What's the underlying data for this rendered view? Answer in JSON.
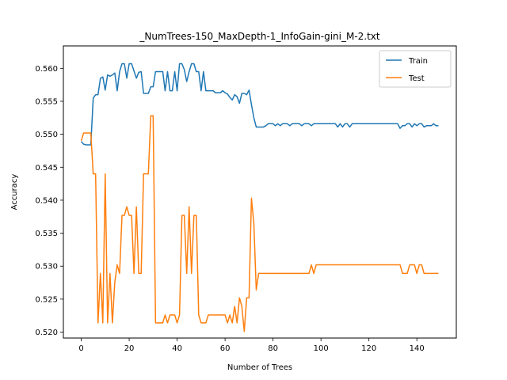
{
  "chart_data": {
    "type": "line",
    "title": "_NumTrees-150_MaxDepth-1_InfoGain-gini_M-2.txt",
    "xlabel": "Number of Trees",
    "ylabel": "Accuracy",
    "xlim": [
      -7.45,
      156.45
    ],
    "ylim": [
      0.5191,
      0.5634
    ],
    "xticks": [
      0,
      20,
      40,
      60,
      80,
      100,
      120,
      140
    ],
    "yticks": [
      0.52,
      0.525,
      0.53,
      0.535,
      0.54,
      0.545,
      0.55,
      0.555,
      0.56
    ],
    "ytick_labels": [
      "0.520",
      "0.525",
      "0.530",
      "0.535",
      "0.540",
      "0.545",
      "0.550",
      "0.555",
      "0.560"
    ],
    "grid": false,
    "legend_position": "top-right",
    "series": [
      {
        "name": "Train",
        "color": "#1f77b4",
        "x": [
          0,
          1,
          2,
          3,
          4,
          5,
          6,
          7,
          8,
          9,
          10,
          11,
          12,
          13,
          14,
          15,
          16,
          17,
          18,
          19,
          20,
          21,
          22,
          23,
          24,
          25,
          26,
          27,
          28,
          29,
          30,
          31,
          32,
          33,
          34,
          35,
          36,
          37,
          38,
          39,
          40,
          41,
          42,
          43,
          44,
          45,
          46,
          47,
          48,
          49,
          50,
          51,
          52,
          53,
          54,
          55,
          56,
          57,
          58,
          59,
          60,
          61,
          62,
          63,
          64,
          65,
          66,
          67,
          68,
          69,
          70,
          71,
          72,
          73,
          74,
          75,
          76,
          77,
          78,
          79,
          80,
          81,
          82,
          83,
          84,
          85,
          86,
          87,
          88,
          89,
          90,
          91,
          92,
          93,
          94,
          95,
          96,
          97,
          98,
          99,
          100,
          101,
          102,
          103,
          104,
          105,
          106,
          107,
          108,
          109,
          110,
          111,
          112,
          113,
          114,
          115,
          116,
          117,
          118,
          119,
          120,
          121,
          122,
          123,
          124,
          125,
          126,
          127,
          128,
          129,
          130,
          131,
          132,
          133,
          134,
          135,
          136,
          137,
          138,
          139,
          140,
          141,
          142,
          143,
          144,
          145,
          146,
          147,
          148,
          149
        ],
        "y": [
          0.5489,
          0.5485,
          0.5484,
          0.5484,
          0.5484,
          0.5555,
          0.556,
          0.556,
          0.5585,
          0.5587,
          0.5567,
          0.559,
          0.5588,
          0.559,
          0.5593,
          0.5566,
          0.5595,
          0.5607,
          0.5607,
          0.5585,
          0.5607,
          0.5607,
          0.5596,
          0.5585,
          0.5594,
          0.5595,
          0.5562,
          0.5562,
          0.5562,
          0.5572,
          0.5572,
          0.5595,
          0.5595,
          0.5595,
          0.5595,
          0.5566,
          0.5595,
          0.5566,
          0.5566,
          0.5595,
          0.5566,
          0.5607,
          0.5607,
          0.5598,
          0.558,
          0.5595,
          0.5607,
          0.5607,
          0.5595,
          0.5595,
          0.5566,
          0.5595,
          0.5566,
          0.5566,
          0.5566,
          0.5566,
          0.5563,
          0.5563,
          0.5563,
          0.5566,
          0.5563,
          0.5561,
          0.5556,
          0.5552,
          0.556,
          0.5557,
          0.5547,
          0.5562,
          0.5562,
          0.556,
          0.5567,
          0.5545,
          0.5525,
          0.5511,
          0.5511,
          0.5511,
          0.5511,
          0.5513,
          0.5516,
          0.5516,
          0.5516,
          0.5513,
          0.5516,
          0.5513,
          0.5516,
          0.5516,
          0.5516,
          0.5513,
          0.5516,
          0.5516,
          0.5516,
          0.5516,
          0.5513,
          0.5516,
          0.5516,
          0.5516,
          0.5513,
          0.5516,
          0.5516,
          0.5516,
          0.5516,
          0.5516,
          0.5516,
          0.5516,
          0.5516,
          0.5516,
          0.5516,
          0.5511,
          0.5516,
          0.5511,
          0.5516,
          0.5516,
          0.5511,
          0.5516,
          0.5516,
          0.5516,
          0.5516,
          0.5516,
          0.5516,
          0.5516,
          0.5516,
          0.5516,
          0.5516,
          0.5516,
          0.5516,
          0.5516,
          0.5516,
          0.5516,
          0.5516,
          0.5516,
          0.5516,
          0.5516,
          0.5516,
          0.5509,
          0.5513,
          0.5513,
          0.5516,
          0.5516,
          0.5511,
          0.5516,
          0.5513,
          0.5516,
          0.5516,
          0.5511,
          0.5513,
          0.5513,
          0.5513,
          0.5516,
          0.5513,
          0.5513
        ]
      },
      {
        "name": "Test",
        "color": "#ff7f0e",
        "x": [
          0,
          1,
          2,
          3,
          4,
          5,
          6,
          7,
          8,
          9,
          10,
          11,
          12,
          13,
          14,
          15,
          16,
          17,
          18,
          19,
          20,
          21,
          22,
          23,
          24,
          25,
          26,
          27,
          28,
          29,
          30,
          31,
          32,
          33,
          34,
          35,
          36,
          37,
          38,
          39,
          40,
          41,
          42,
          43,
          44,
          45,
          46,
          47,
          48,
          49,
          50,
          51,
          52,
          53,
          54,
          55,
          56,
          57,
          58,
          59,
          60,
          61,
          62,
          63,
          64,
          65,
          66,
          67,
          68,
          69,
          70,
          71,
          72,
          73,
          74,
          75,
          76,
          77,
          78,
          79,
          80,
          81,
          82,
          83,
          84,
          85,
          86,
          87,
          88,
          89,
          90,
          91,
          92,
          93,
          94,
          95,
          96,
          97,
          98,
          99,
          100,
          101,
          102,
          103,
          104,
          105,
          106,
          107,
          108,
          109,
          110,
          111,
          112,
          113,
          114,
          115,
          116,
          117,
          118,
          119,
          120,
          121,
          122,
          123,
          124,
          125,
          126,
          127,
          128,
          129,
          130,
          131,
          132,
          133,
          134,
          135,
          136,
          137,
          138,
          139,
          140,
          141,
          142,
          143,
          144,
          145,
          146,
          147,
          148,
          149
        ],
        "y": [
          0.549,
          0.5502,
          0.5502,
          0.5502,
          0.5502,
          0.544,
          0.544,
          0.5214,
          0.5289,
          0.5214,
          0.544,
          0.5214,
          0.5289,
          0.5214,
          0.5276,
          0.5302,
          0.5289,
          0.5377,
          0.5377,
          0.539,
          0.5377,
          0.5377,
          0.5289,
          0.539,
          0.5289,
          0.5289,
          0.544,
          0.544,
          0.544,
          0.5528,
          0.5528,
          0.5214,
          0.5214,
          0.5214,
          0.5214,
          0.5226,
          0.5214,
          0.5226,
          0.5226,
          0.5226,
          0.5214,
          0.5226,
          0.5377,
          0.5377,
          0.5289,
          0.539,
          0.5289,
          0.5377,
          0.5377,
          0.5226,
          0.5214,
          0.5214,
          0.5214,
          0.5226,
          0.5226,
          0.5226,
          0.5226,
          0.5226,
          0.5226,
          0.5226,
          0.5226,
          0.5214,
          0.5226,
          0.5214,
          0.5239,
          0.5214,
          0.5252,
          0.5239,
          0.5201,
          0.5252,
          0.5252,
          0.5403,
          0.5365,
          0.5264,
          0.5289,
          0.5289,
          0.5289,
          0.5289,
          0.5289,
          0.5289,
          0.5289,
          0.5289,
          0.5289,
          0.5289,
          0.5289,
          0.5289,
          0.5289,
          0.5289,
          0.5289,
          0.5289,
          0.5289,
          0.5289,
          0.5289,
          0.5289,
          0.5289,
          0.5289,
          0.5302,
          0.5289,
          0.5302,
          0.5302,
          0.5302,
          0.5302,
          0.5302,
          0.5302,
          0.5302,
          0.5302,
          0.5302,
          0.5302,
          0.5302,
          0.5302,
          0.5302,
          0.5302,
          0.5302,
          0.5302,
          0.5302,
          0.5302,
          0.5302,
          0.5302,
          0.5302,
          0.5302,
          0.5302,
          0.5302,
          0.5302,
          0.5302,
          0.5302,
          0.5302,
          0.5302,
          0.5302,
          0.5302,
          0.5302,
          0.5302,
          0.5302,
          0.5302,
          0.5302,
          0.5289,
          0.5289,
          0.5289,
          0.5302,
          0.5302,
          0.5302,
          0.5289,
          0.5302,
          0.5302,
          0.5289,
          0.5289,
          0.5289,
          0.5289,
          0.5289,
          0.5289,
          0.5289
        ]
      }
    ]
  }
}
